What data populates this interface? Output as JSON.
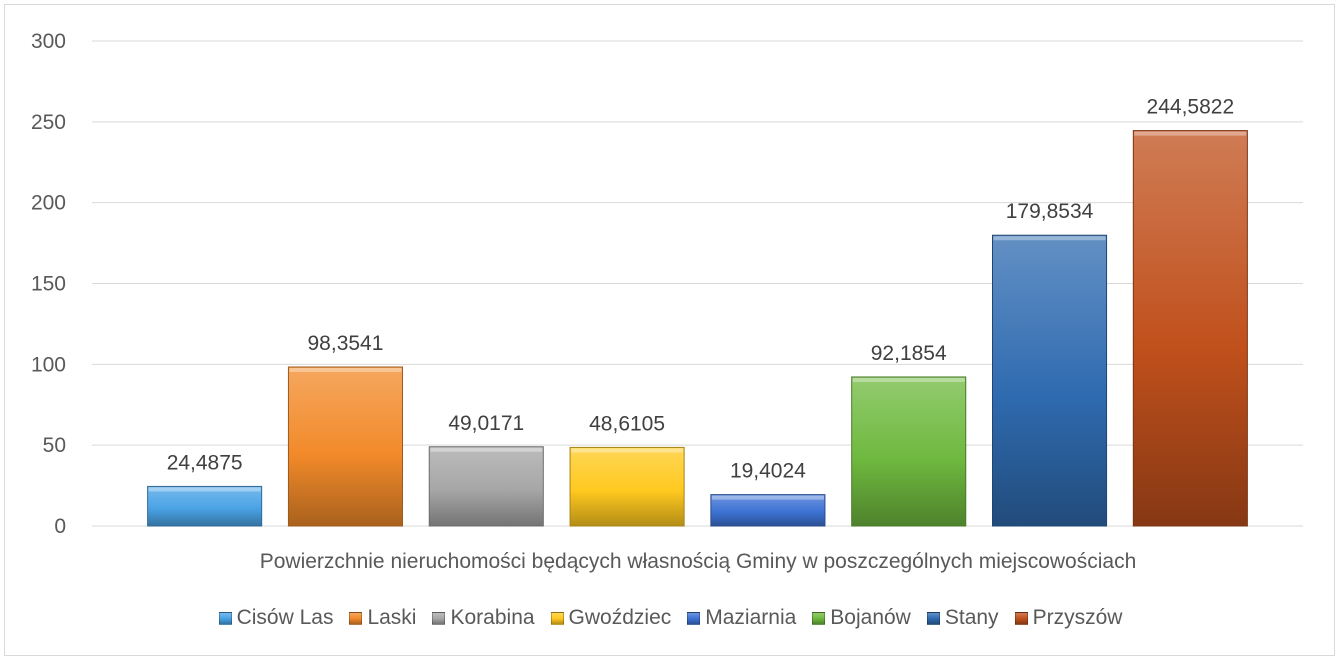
{
  "chart_data": {
    "type": "bar",
    "categories": [
      "Powierzchnie nieruchomości będących własnością Gminy w poszczególnych miejscowościach"
    ],
    "series": [
      {
        "name": "Cisów Las",
        "values": [
          24.4875
        ],
        "label": "24,4875",
        "color": "#4aa3e6"
      },
      {
        "name": "Laski",
        "values": [
          98.3541
        ],
        "label": "98,3541",
        "color": "#f28a2a"
      },
      {
        "name": "Korabina",
        "values": [
          49.0171
        ],
        "label": "49,0171",
        "color": "#a6a6a6"
      },
      {
        "name": "Gwoździec",
        "values": [
          48.6105
        ],
        "label": "48,6105",
        "color": "#ffc91f"
      },
      {
        "name": "Maziarnia",
        "values": [
          19.4024
        ],
        "label": "19,4024",
        "color": "#3d72d4"
      },
      {
        "name": "Bojanów",
        "values": [
          92.1854
        ],
        "label": "92,1854",
        "color": "#6fb93f"
      },
      {
        "name": "Stany",
        "values": [
          179.8534
        ],
        "label": "179,8534",
        "color": "#2f6bb0"
      },
      {
        "name": "Przyszów",
        "values": [
          244.5822
        ],
        "label": "244,5822",
        "color": "#c0501c"
      }
    ],
    "ylim": [
      0,
      300
    ],
    "yticks": [
      "0",
      "50",
      "100",
      "150",
      "200",
      "250",
      "300"
    ],
    "grid": true,
    "legend_position": "bottom",
    "xlabel": "",
    "ylabel": ""
  }
}
